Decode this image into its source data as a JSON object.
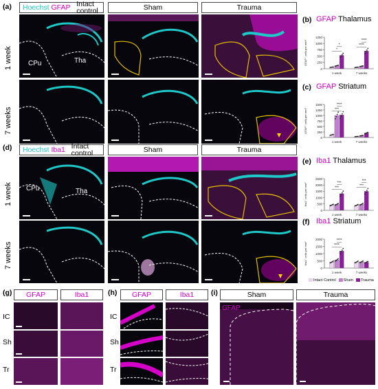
{
  "panel_labels": {
    "a": "(a)",
    "b": "(b)",
    "c": "(c)",
    "d": "(d)",
    "e": "(e)",
    "f": "(f)",
    "g": "(g)",
    "h": "(h)",
    "i": "(i)"
  },
  "headers": {
    "a": {
      "col1_stain1": "Hoechst",
      "col1_stain2": "GFAP",
      "col1_title": "Intact control",
      "col2": "Sham",
      "col3": "Trauma"
    },
    "d": {
      "col1_stain1": "Hoechst",
      "col1_stain2": "Iba1",
      "col1_title": "Intact control",
      "col2": "Sham",
      "col3": "Trauma"
    },
    "g": {
      "col1": "GFAP",
      "col2": "Iba1"
    },
    "h": {
      "col1": "GFAP",
      "col2": "Iba1"
    },
    "i": {
      "col1": "Sham",
      "col2": "Trauma",
      "stain": "GFAP"
    }
  },
  "row_labels": {
    "one_week": "1 week",
    "seven_weeks": "7 weeks"
  },
  "tissue_labels": {
    "cpu": "CPu",
    "tha": "Tha"
  },
  "small_row_labels": [
    "IC",
    "Sh",
    "Tr"
  ],
  "colors": {
    "magenta": "#d400c8",
    "cyan": "#1fc8c8",
    "intact": "#e9d6ec",
    "sham": "#c07fcf",
    "trauma": "#8a1f9a",
    "outline": "#e6c000"
  },
  "legend": {
    "intact": "Intact Control",
    "sham": "Sham",
    "trauma": "Trauma"
  },
  "chart_data": [
    {
      "id": "b",
      "type": "bar",
      "title_marker": "GFAP",
      "title_rest": "Thalamus",
      "ylabel": "GFAP⁺ cells per mm²",
      "ylim": [
        0,
        1250
      ],
      "yticks": [
        0,
        250,
        500,
        750,
        1000,
        1250
      ],
      "groups": [
        "1 week",
        "7 weeks"
      ],
      "series": [
        {
          "name": "Intact Control",
          "values": [
            60,
            55
          ]
        },
        {
          "name": "Sham",
          "values": [
            120,
            100
          ]
        },
        {
          "name": "Trauma",
          "values": [
            530,
            700
          ]
        }
      ],
      "significance": [
        [
          "*",
          "1 week"
        ],
        [
          "*",
          "1 week"
        ],
        [
          "****",
          "7 weeks"
        ],
        [
          "****",
          "7 weeks"
        ]
      ]
    },
    {
      "id": "c",
      "type": "bar",
      "title_marker": "GFAP",
      "title_rest": "Striatum",
      "ylabel": "GFAP⁺ cells per mm²",
      "ylim": [
        0,
        1500
      ],
      "yticks": [
        0,
        250,
        500,
        750,
        1000,
        1250,
        1500
      ],
      "groups": [
        "1 week",
        "7 weeks"
      ],
      "series": [
        {
          "name": "Intact Control",
          "values": [
            120,
            40
          ]
        },
        {
          "name": "Sham",
          "values": [
            1000,
            80
          ]
        },
        {
          "name": "Trauma",
          "values": [
            1020,
            200
          ]
        }
      ],
      "significance": [
        [
          "***",
          "1 week"
        ],
        [
          "****",
          "1 week"
        ]
      ]
    },
    {
      "id": "e",
      "type": "bar",
      "title_marker": "Iba1",
      "title_rest": "Thalamus",
      "ylabel": "Iba1⁺ cells per mm²",
      "ylim": [
        0,
        2500
      ],
      "yticks": [
        0,
        500,
        1000,
        1500,
        2000,
        2500
      ],
      "groups": [
        "1 week",
        "7 weeks"
      ],
      "series": [
        {
          "name": "Intact Control",
          "values": [
            420,
            400
          ]
        },
        {
          "name": "Sham",
          "values": [
            470,
            480
          ]
        },
        {
          "name": "Trauma",
          "values": [
            1320,
            1500
          ]
        }
      ],
      "significance": [
        [
          "***",
          "1 week"
        ],
        [
          "***",
          "1 week"
        ],
        [
          "***",
          "7 weeks"
        ],
        [
          "***",
          "7 weeks"
        ]
      ]
    },
    {
      "id": "f",
      "type": "bar",
      "title_marker": "Iba1",
      "title_rest": "Striatum",
      "ylabel": "Iba1⁺ cells per mm²",
      "ylim": [
        0,
        2000
      ],
      "yticks": [
        0,
        500,
        1000,
        1500,
        2000
      ],
      "groups": [
        "1 week",
        "7 weeks"
      ],
      "series": [
        {
          "name": "Intact Control",
          "values": [
            420,
            420
          ]
        },
        {
          "name": "Sham",
          "values": [
            560,
            430
          ]
        },
        {
          "name": "Trauma",
          "values": [
            1180,
            400
          ]
        }
      ],
      "significance": [
        [
          "****",
          "1 week"
        ],
        [
          "****",
          "1 week"
        ]
      ]
    }
  ]
}
